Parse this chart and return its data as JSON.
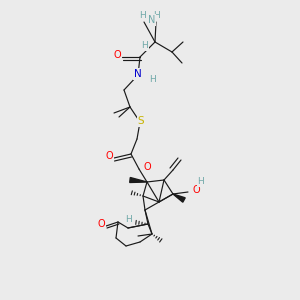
{
  "background_color": "#ebebeb",
  "figure_width": 3.0,
  "figure_height": 3.0,
  "dpi": 100,
  "line_color": "#1a1a1a",
  "lw": 0.85,
  "colors": {
    "N": "#6fa8a8",
    "N_amide": "#0000cd",
    "O": "#ff0000",
    "S": "#c8b400",
    "H": "#6fa8a8",
    "C": "#1a1a1a"
  }
}
